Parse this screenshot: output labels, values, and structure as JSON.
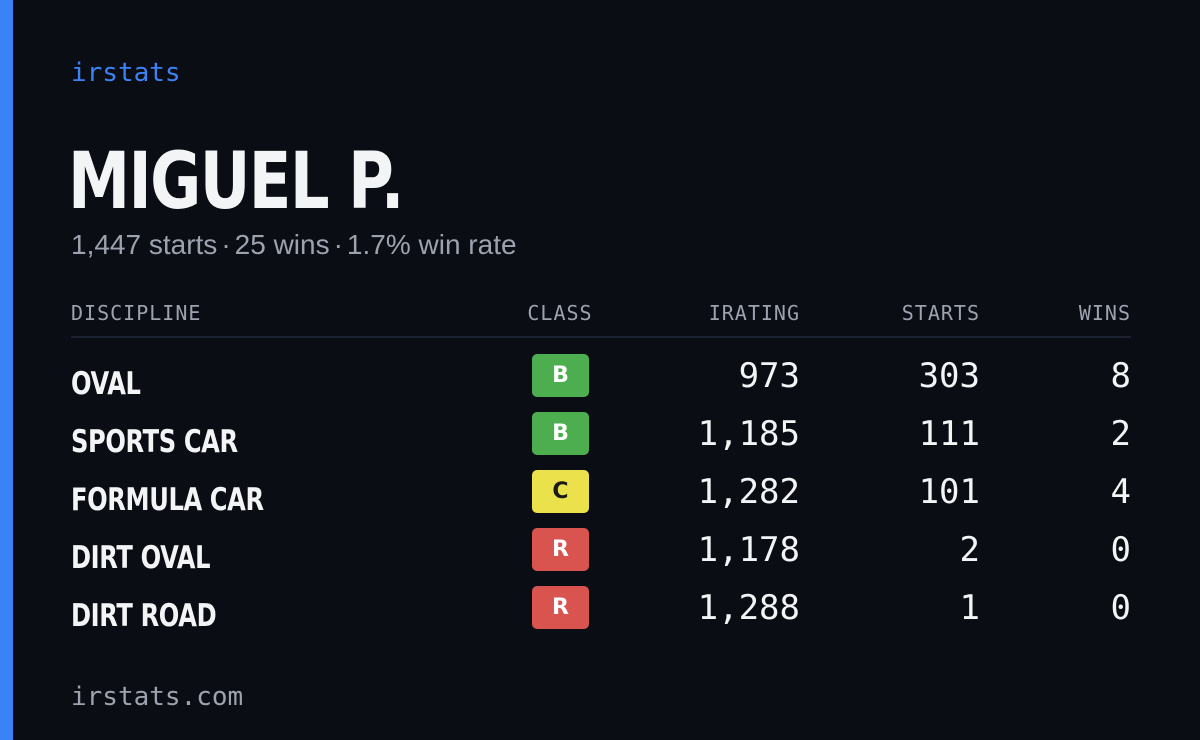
{
  "brand": "irstats",
  "profile": {
    "name": "MIGUEL P.",
    "starts_text": "1,447 starts",
    "wins_text": "25 wins",
    "win_rate_text": "1.7% win rate",
    "separator": "·"
  },
  "table": {
    "headers": {
      "discipline": "DISCIPLINE",
      "class": "CLASS",
      "irating": "IRATING",
      "starts": "STARTS",
      "wins": "WINS"
    },
    "rows": [
      {
        "discipline": "OVAL",
        "class": "B",
        "irating": "973",
        "starts": "303",
        "wins": "8"
      },
      {
        "discipline": "SPORTS CAR",
        "class": "B",
        "irating": "1,185",
        "starts": "111",
        "wins": "2"
      },
      {
        "discipline": "FORMULA CAR",
        "class": "C",
        "irating": "1,282",
        "starts": "101",
        "wins": "4"
      },
      {
        "discipline": "DIRT OVAL",
        "class": "R",
        "irating": "1,178",
        "starts": "2",
        "wins": "0"
      },
      {
        "discipline": "DIRT ROAD",
        "class": "R",
        "irating": "1,288",
        "starts": "1",
        "wins": "0"
      }
    ]
  },
  "footer": "irstats.com",
  "colors": {
    "background": "#0b0d14",
    "accent": "#3b82f6",
    "class_b": "#4cae4f",
    "class_c": "#ebe14a",
    "class_r": "#d9534f"
  }
}
